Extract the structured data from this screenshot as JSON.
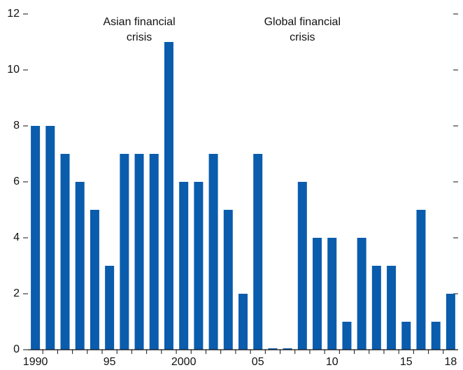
{
  "chart_data": {
    "type": "bar",
    "categories": [
      "1990",
      null,
      null,
      null,
      null,
      "95",
      null,
      null,
      null,
      null,
      "2000",
      null,
      null,
      null,
      null,
      "05",
      null,
      null,
      null,
      null,
      "10",
      null,
      null,
      null,
      null,
      "15",
      null,
      null,
      "18"
    ],
    "values": [
      8,
      8,
      7,
      6,
      5,
      3,
      7,
      7,
      7,
      11,
      6,
      6,
      7,
      5,
      2,
      7,
      0.05,
      0.05,
      6,
      4,
      4,
      1,
      4,
      3,
      3,
      1,
      5,
      1,
      2
    ],
    "color": "#0a5cad",
    "ylim": [
      0,
      12
    ],
    "yticks": [
      0,
      2,
      4,
      6,
      8,
      10,
      12
    ],
    "annotations": [
      {
        "lines": [
          "Asian financial",
          "crisis"
        ]
      },
      {
        "lines": [
          "Global financial",
          "crisis"
        ]
      }
    ]
  }
}
